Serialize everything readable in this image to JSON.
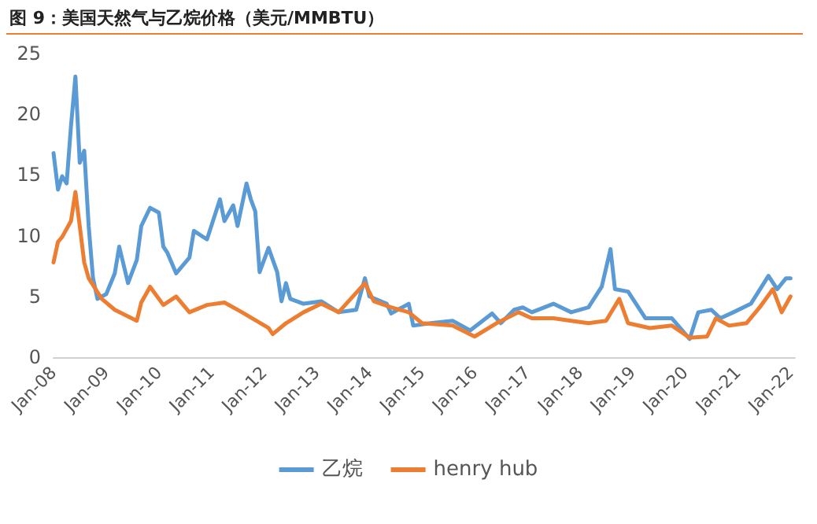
{
  "chart_data": {
    "type": "line",
    "title": "图 9：美国天然气与乙烷价格（美元/MMBTU）",
    "xlim": [
      "2008-01",
      "2022-02"
    ],
    "xticks": [
      {
        "value": "2008-01",
        "label": "Jan-08"
      },
      {
        "value": "2009-01",
        "label": "Jan-09"
      },
      {
        "value": "2010-01",
        "label": "Jan-10"
      },
      {
        "value": "2011-01",
        "label": "Jan-11"
      },
      {
        "value": "2012-01",
        "label": "Jan-12"
      },
      {
        "value": "2013-01",
        "label": "Jan-13"
      },
      {
        "value": "2014-01",
        "label": "Jan-14"
      },
      {
        "value": "2015-01",
        "label": "Jan-15"
      },
      {
        "value": "2016-01",
        "label": "Jan-16"
      },
      {
        "value": "2017-01",
        "label": "Jan-17"
      },
      {
        "value": "2018-01",
        "label": "Jan-18"
      },
      {
        "value": "2019-01",
        "label": "Jan-19"
      },
      {
        "value": "2020-01",
        "label": "Jan-20"
      },
      {
        "value": "2021-01",
        "label": "Jan-21"
      },
      {
        "value": "2022-01",
        "label": "Jan-22"
      }
    ],
    "ylim": [
      0,
      25
    ],
    "yticks": [
      0,
      5,
      10,
      15,
      20,
      25
    ],
    "grid": false,
    "legend": "bottom",
    "marker": "none",
    "line_style": "solid",
    "series": [
      {
        "name": "乙烷",
        "color": "#5b9bd5",
        "x": [
          "2008-01",
          "2008-02",
          "2008-03",
          "2008-04",
          "2008-05",
          "2008-06",
          "2008-07",
          "2008-08",
          "2008-09",
          "2008-10",
          "2008-11",
          "2009-01",
          "2009-03",
          "2009-04",
          "2009-06",
          "2009-08",
          "2009-09",
          "2009-11",
          "2010-01",
          "2010-02",
          "2010-03",
          "2010-05",
          "2010-08",
          "2010-09",
          "2010-12",
          "2011-03",
          "2011-04",
          "2011-06",
          "2011-07",
          "2011-09",
          "2011-10",
          "2011-11",
          "2011-12",
          "2012-02",
          "2012-04",
          "2012-05",
          "2012-06",
          "2012-07",
          "2012-10",
          "2013-02",
          "2013-06",
          "2013-10",
          "2013-12",
          "2014-01",
          "2014-05",
          "2014-06",
          "2014-10",
          "2014-11",
          "2015-03",
          "2015-08",
          "2015-12",
          "2016-05",
          "2016-07",
          "2016-10",
          "2016-12",
          "2017-02",
          "2017-07",
          "2017-11",
          "2018-03",
          "2018-06",
          "2018-08",
          "2018-09",
          "2018-12",
          "2019-04",
          "2019-07",
          "2019-10",
          "2020-02",
          "2020-04",
          "2020-07",
          "2020-09",
          "2020-12",
          "2021-04",
          "2021-08",
          "2021-10",
          "2021-12",
          "2022-01"
        ],
        "values": [
          16.8,
          13.8,
          14.9,
          14.3,
          19,
          23.1,
          16,
          17,
          10.8,
          6.5,
          4.8,
          5.2,
          6.9,
          9.1,
          6.1,
          8,
          10.8,
          12.3,
          11.9,
          9.1,
          8.6,
          6.9,
          8.2,
          10.4,
          9.7,
          13,
          11.2,
          12.5,
          10.8,
          14.3,
          13,
          12,
          7,
          9,
          7,
          4.6,
          6.1,
          4.8,
          4.4,
          4.6,
          3.7,
          3.9,
          6.5,
          5,
          4.4,
          3.6,
          4.4,
          2.6,
          2.8,
          3,
          2.2,
          3.6,
          2.8,
          3.9,
          4.1,
          3.7,
          4.4,
          3.7,
          4.1,
          5.8,
          8.9,
          5.6,
          5.4,
          3.2,
          3.2,
          3.2,
          1.5,
          3.7,
          3.9,
          3.2,
          3.7,
          4.4,
          6.7,
          5.6,
          6.5,
          6.5
        ]
      },
      {
        "name": "henry hub",
        "color": "#ed7d31",
        "x": [
          "2008-01",
          "2008-02",
          "2008-03",
          "2008-05",
          "2008-06",
          "2008-07",
          "2008-08",
          "2008-09",
          "2008-12",
          "2009-03",
          "2009-08",
          "2009-09",
          "2009-11",
          "2010-02",
          "2010-05",
          "2010-08",
          "2010-12",
          "2011-04",
          "2011-08",
          "2012-02",
          "2012-03",
          "2012-06",
          "2012-10",
          "2013-02",
          "2013-06",
          "2013-12",
          "2014-02",
          "2014-06",
          "2014-10",
          "2015-01",
          "2015-08",
          "2016-01",
          "2016-06",
          "2016-11",
          "2017-02",
          "2017-07",
          "2017-11",
          "2018-03",
          "2018-07",
          "2018-10",
          "2018-12",
          "2019-05",
          "2019-10",
          "2020-02",
          "2020-06",
          "2020-08",
          "2020-11",
          "2021-03",
          "2021-06",
          "2021-09",
          "2021-11",
          "2022-01"
        ],
        "values": [
          7.8,
          9.5,
          9.9,
          11.2,
          13.6,
          10.8,
          7.8,
          6.5,
          4.8,
          3.9,
          3,
          4.5,
          5.8,
          4.3,
          5,
          3.7,
          4.3,
          4.5,
          3.7,
          2.4,
          1.9,
          2.8,
          3.7,
          4.4,
          3.7,
          6.1,
          4.6,
          4.1,
          3.7,
          2.8,
          2.6,
          1.7,
          2.8,
          3.7,
          3.2,
          3.2,
          3,
          2.8,
          3,
          4.8,
          2.8,
          2.4,
          2.6,
          1.6,
          1.7,
          3.2,
          2.6,
          2.8,
          4.1,
          5.6,
          3.7,
          5
        ]
      }
    ]
  }
}
